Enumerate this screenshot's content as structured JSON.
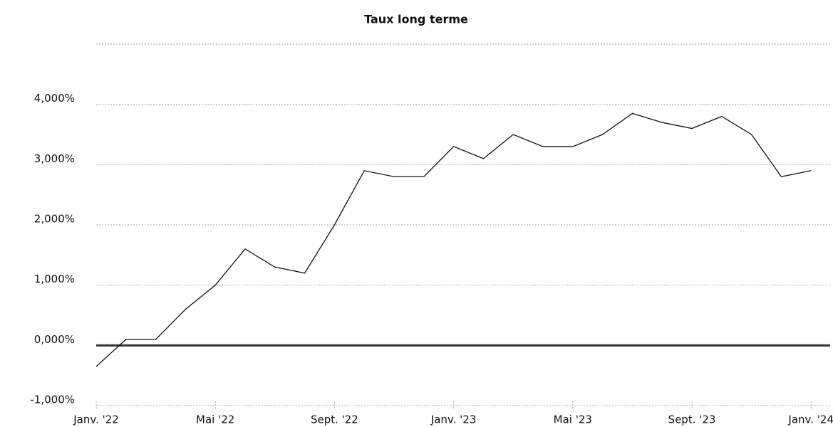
{
  "chart_data": {
    "type": "line",
    "title": "Taux long terme",
    "x": [
      "2022-01",
      "2022-02",
      "2022-03",
      "2022-04",
      "2022-05",
      "2022-06",
      "2022-07",
      "2022-08",
      "2022-09",
      "2022-10",
      "2022-11",
      "2022-12",
      "2023-01",
      "2023-02",
      "2023-03",
      "2023-04",
      "2023-05",
      "2023-06",
      "2023-07",
      "2023-08",
      "2023-09",
      "2023-10",
      "2023-11",
      "2023-12",
      "2024-01"
    ],
    "series": [
      {
        "name": "Taux long terme",
        "color": "#111111",
        "values": [
          -0.35,
          0.1,
          0.1,
          0.6,
          1.0,
          1.6,
          1.3,
          1.2,
          2.0,
          2.9,
          2.8,
          2.8,
          3.3,
          3.1,
          3.5,
          3.3,
          3.3,
          3.5,
          3.85,
          3.7,
          3.6,
          3.8,
          3.5,
          2.8,
          2.9
        ]
      }
    ],
    "ylim": [
      -1,
      5
    ],
    "yticks": [
      {
        "value": -1,
        "label": "-1,000%"
      },
      {
        "value": 0,
        "label": "0,000%"
      },
      {
        "value": 1,
        "label": "1,000%"
      },
      {
        "value": 2,
        "label": "2,000%"
      },
      {
        "value": 3,
        "label": "3,000%"
      },
      {
        "value": 4,
        "label": "4,000%"
      }
    ],
    "xticks": [
      {
        "value": "2022-01",
        "label": "Janv. '22"
      },
      {
        "value": "2022-05",
        "label": "Mai '22"
      },
      {
        "value": "2022-09",
        "label": "Sept. '22"
      },
      {
        "value": "2023-01",
        "label": "Janv. '23"
      },
      {
        "value": "2023-05",
        "label": "Mai '23"
      },
      {
        "value": "2023-09",
        "label": "Sept. '23"
      },
      {
        "value": "2024-01",
        "label": "Janv. '24"
      }
    ],
    "grid": true
  }
}
